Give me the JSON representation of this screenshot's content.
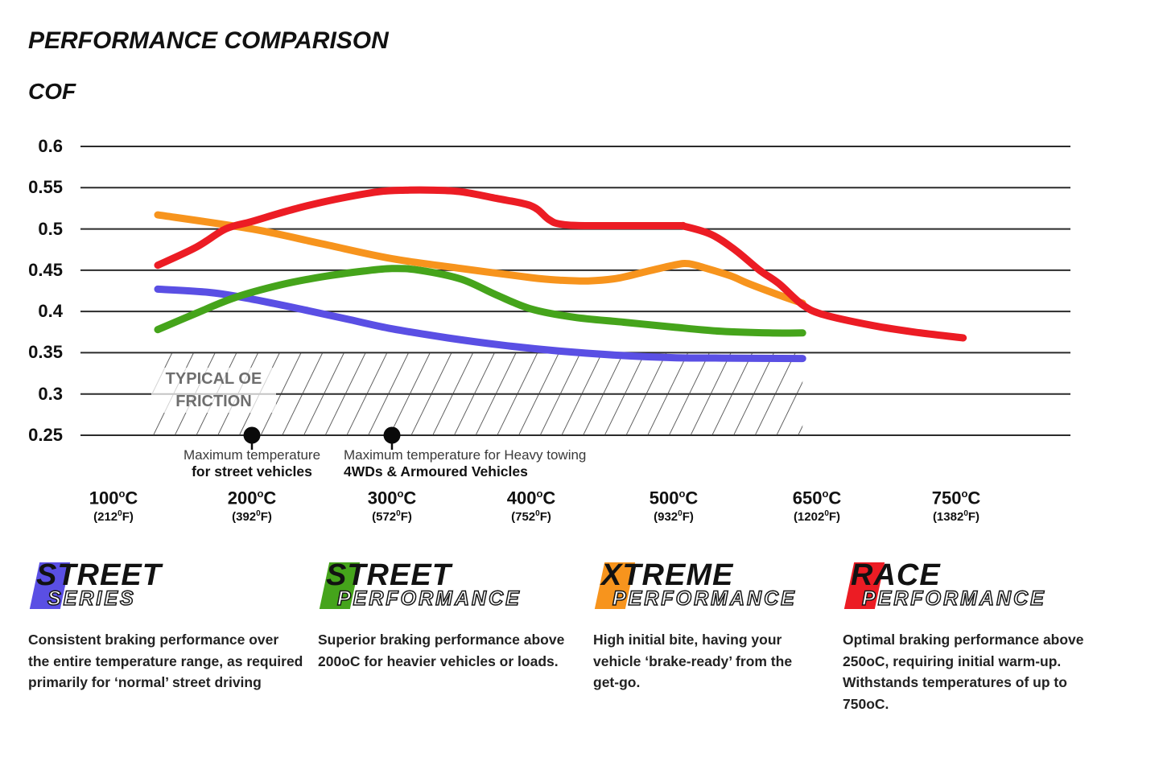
{
  "header": {
    "title": "PERFORMANCE COMPARISON",
    "ylabel": "COF"
  },
  "chart_data": {
    "type": "line",
    "title": "PERFORMANCE COMPARISON",
    "ylabel": "COF",
    "grid": "horizontal-only",
    "ylim": [
      0.25,
      0.6
    ],
    "y_ticks": [
      "0.6",
      "0.55",
      "0.5",
      "0.45",
      "0.4",
      "0.35",
      "0.3",
      "0.25"
    ],
    "y_tick_values": [
      0.6,
      0.55,
      0.5,
      0.45,
      0.4,
      0.35,
      0.3,
      0.25
    ],
    "x_ticks": [
      {
        "celsius": "100",
        "fahrenheit": "212",
        "temp": 100
      },
      {
        "celsius": "200",
        "fahrenheit": "392",
        "temp": 200
      },
      {
        "celsius": "300",
        "fahrenheit": "572",
        "temp": 300
      },
      {
        "celsius": "400",
        "fahrenheit": "752",
        "temp": 400
      },
      {
        "celsius": "500",
        "fahrenheit": "932",
        "temp": 500
      },
      {
        "celsius": "650",
        "fahrenheit": "1202",
        "temp": 650
      },
      {
        "celsius": "750",
        "fahrenheit": "1382",
        "temp": 750
      }
    ],
    "band": {
      "label_line1": "TYPICAL OE",
      "label_line2": "FRICTION",
      "cof_from": 0.25,
      "cof_to": 0.35,
      "temp_from": 128,
      "temp_to": 635
    },
    "markers": [
      {
        "temp": 200,
        "cof": 0.25,
        "line1": "Maximum temperature",
        "line2": "for street vehicles"
      },
      {
        "temp": 300,
        "cof": 0.25,
        "line1": "Maximum temperature for Heavy towing",
        "line2": "4WDs & Armoured Vehicles"
      }
    ],
    "series": [
      {
        "name": "Street Series",
        "color": "#5a4fe4",
        "points": [
          [
            132,
            0.427
          ],
          [
            170,
            0.423
          ],
          [
            200,
            0.415
          ],
          [
            240,
            0.401
          ],
          [
            270,
            0.39
          ],
          [
            300,
            0.379
          ],
          [
            340,
            0.368
          ],
          [
            380,
            0.359
          ],
          [
            420,
            0.352
          ],
          [
            460,
            0.347
          ],
          [
            500,
            0.344
          ],
          [
            550,
            0.3435
          ],
          [
            635,
            0.343
          ]
        ]
      },
      {
        "name": "Street Performance",
        "color": "#45a41b",
        "points": [
          [
            132,
            0.378
          ],
          [
            160,
            0.398
          ],
          [
            188,
            0.417
          ],
          [
            220,
            0.432
          ],
          [
            250,
            0.442
          ],
          [
            280,
            0.449
          ],
          [
            300,
            0.452
          ],
          [
            320,
            0.45
          ],
          [
            350,
            0.439
          ],
          [
            375,
            0.42
          ],
          [
            400,
            0.403
          ],
          [
            430,
            0.393
          ],
          [
            465,
            0.387
          ],
          [
            500,
            0.381
          ],
          [
            550,
            0.376
          ],
          [
            600,
            0.374
          ],
          [
            635,
            0.374
          ]
        ]
      },
      {
        "name": "Xtreme Performance",
        "color": "#f7941d",
        "points": [
          [
            132,
            0.517
          ],
          [
            200,
            0.5
          ],
          [
            250,
            0.482
          ],
          [
            300,
            0.464
          ],
          [
            350,
            0.452
          ],
          [
            400,
            0.441
          ],
          [
            420,
            0.438
          ],
          [
            440,
            0.437
          ],
          [
            460,
            0.44
          ],
          [
            480,
            0.448
          ],
          [
            500,
            0.456
          ],
          [
            515,
            0.458
          ],
          [
            535,
            0.452
          ],
          [
            560,
            0.443
          ],
          [
            578,
            0.434
          ],
          [
            610,
            0.42
          ],
          [
            635,
            0.41
          ]
        ]
      },
      {
        "name": "Race Performance",
        "color": "#ec1c24",
        "points": [
          [
            132,
            0.456
          ],
          [
            160,
            0.478
          ],
          [
            181,
            0.5
          ],
          [
            200,
            0.509
          ],
          [
            230,
            0.524
          ],
          [
            260,
            0.536
          ],
          [
            290,
            0.545
          ],
          [
            310,
            0.547
          ],
          [
            330,
            0.547
          ],
          [
            350,
            0.545
          ],
          [
            375,
            0.537
          ],
          [
            400,
            0.528
          ],
          [
            412,
            0.512
          ],
          [
            420,
            0.506
          ],
          [
            440,
            0.504
          ],
          [
            500,
            0.504
          ],
          [
            512,
            0.503
          ],
          [
            540,
            0.493
          ],
          [
            565,
            0.474
          ],
          [
            590,
            0.45
          ],
          [
            610,
            0.434
          ],
          [
            635,
            0.408
          ],
          [
            655,
            0.396
          ],
          [
            690,
            0.383
          ],
          [
            720,
            0.375
          ],
          [
            755,
            0.368
          ]
        ]
      }
    ]
  },
  "legends": [
    {
      "word1": "STREET",
      "word2": "SERIES",
      "color": "#5a4fe4",
      "description": "Consistent braking performance over the entire temperature range, as required primarily for ‘normal’ street driving"
    },
    {
      "word1": "STREET",
      "word2": "PERFORMANCE",
      "color": "#45a41b",
      "description": "Superior braking performance above 200oC for heavier vehicles or loads."
    },
    {
      "word1": "XTREME",
      "word2": "PERFORMANCE",
      "color": "#f7941d",
      "description": "High initial bite, having your vehicle ‘brake-ready’ from the get-go."
    },
    {
      "word1": "RACE",
      "word2": "PERFORMANCE",
      "color": "#ec1c24",
      "description": "Optimal braking performance above 250oC, requiring initial warm-up. Withstands temperatures of up to 750oC."
    }
  ]
}
